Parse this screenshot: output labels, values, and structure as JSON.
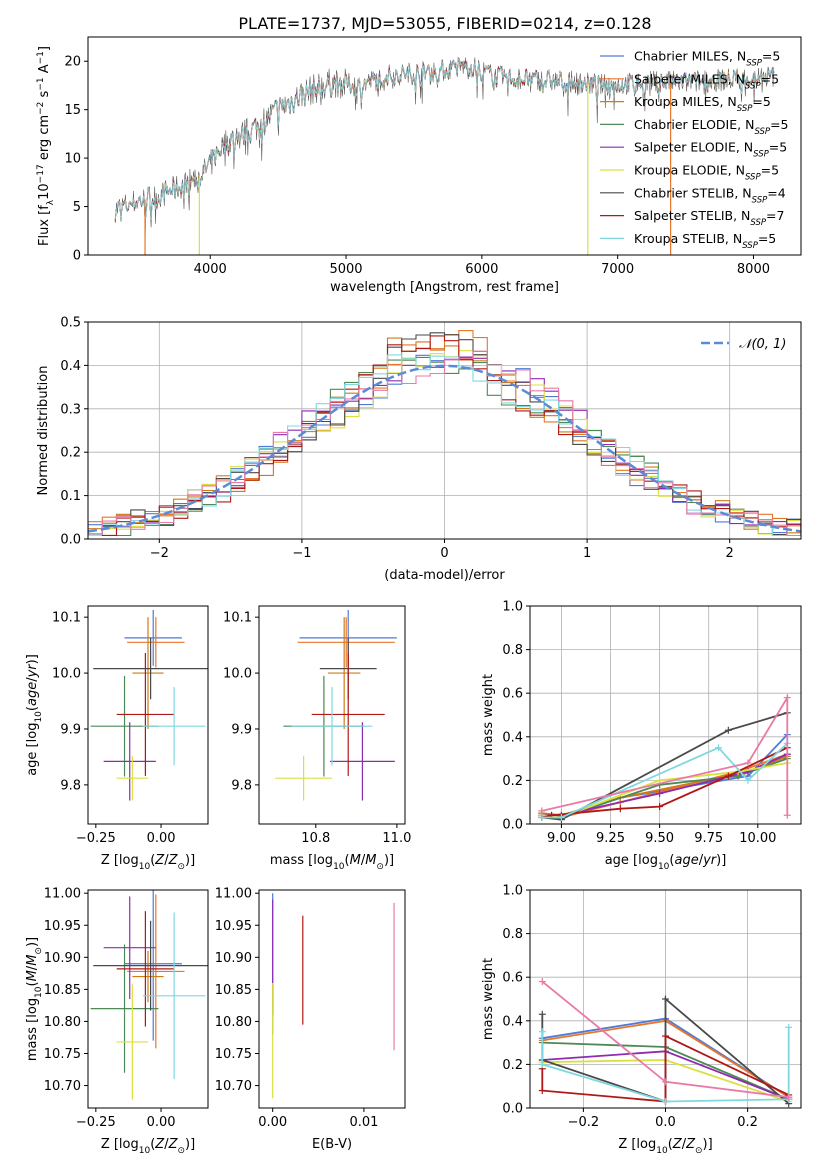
{
  "figure": {
    "title": "PLATE=1737, MJD=53055, FIBERID=0214, z=0.128"
  },
  "models": [
    {
      "name": "Chabrier MILES, N_SSP=5",
      "label_base": "Chabrier MILES, N",
      "label_sub": "SSP",
      "label_tail": "=5",
      "color": "#4f7ad8"
    },
    {
      "name": "Salpeter MILES, N_SSP=5",
      "label_base": "Salpeter MILES, N",
      "label_sub": "SSP",
      "label_tail": "=5",
      "color": "#e8762b"
    },
    {
      "name": "Kroupa MILES, N_SSP=5",
      "label_base": "Kroupa MILES, N",
      "label_sub": "SSP",
      "label_tail": "=5",
      "color": "#d07a1a"
    },
    {
      "name": "Chabrier ELODIE, N_SSP=5",
      "label_base": "Chabrier ELODIE, N",
      "label_sub": "SSP",
      "label_tail": "=5",
      "color": "#4e8a55"
    },
    {
      "name": "Salpeter ELODIE, N_SSP=5",
      "label_base": "Salpeter ELODIE, N",
      "label_sub": "SSP",
      "label_tail": "=5",
      "color": "#8e2bb0"
    },
    {
      "name": "Kroupa ELODIE, N_SSP=5",
      "label_base": "Kroupa ELODIE, N",
      "label_sub": "SSP",
      "label_tail": "=5",
      "color": "#d9e040"
    },
    {
      "name": "Chabrier STELIB, N_SSP=4",
      "label_base": "Chabrier STELIB, N",
      "label_sub": "SSP",
      "label_tail": "=4",
      "color": "#4a4a4a"
    },
    {
      "name": "Salpeter STELIB, N_SSP=7",
      "label_base": "Salpeter STELIB, N",
      "label_sub": "SSP",
      "label_tail": "=7",
      "color": "#b01818"
    },
    {
      "name": "Kroupa STELIB, N_SSP=5",
      "label_base": "Kroupa STELIB, N",
      "label_sub": "SSP",
      "label_tail": "=5",
      "color": "#7fd8e0"
    }
  ],
  "chart_data": [
    {
      "id": "spectrum",
      "type": "line",
      "xlabel": "wavelength [Angstrom, rest frame]",
      "ylabel": "Flux [f_λ 10^-17 erg cm^-2 s^-1 A^-1]",
      "xlim": [
        3100,
        8350
      ],
      "ylim": [
        0,
        22.5
      ],
      "xticks": [
        4000,
        5000,
        6000,
        7000,
        8000
      ],
      "yticks": [
        0,
        5,
        10,
        15,
        20
      ],
      "grid": false,
      "legend": "right",
      "trend": [
        [
          3300,
          4.7
        ],
        [
          3450,
          5.5
        ],
        [
          3600,
          6.0
        ],
        [
          3800,
          7.2
        ],
        [
          3950,
          8.5
        ],
        [
          4100,
          11.5
        ],
        [
          4300,
          12.8
        ],
        [
          4500,
          15.0
        ],
        [
          4700,
          16.8
        ],
        [
          4900,
          17.8
        ],
        [
          5100,
          17.5
        ],
        [
          5300,
          18.5
        ],
        [
          5500,
          18.8
        ],
        [
          5700,
          19.0
        ],
        [
          5900,
          19.6
        ],
        [
          6100,
          18.4
        ],
        [
          6300,
          18.2
        ],
        [
          6500,
          18.0
        ],
        [
          6700,
          17.8
        ],
        [
          6900,
          17.5
        ],
        [
          7100,
          17.7
        ],
        [
          7300,
          17.9
        ],
        [
          7500,
          17.8
        ],
        [
          7700,
          18.0
        ],
        [
          7900,
          18.2
        ],
        [
          8100,
          18.4
        ]
      ],
      "dropouts": [
        [
          3520,
          1
        ],
        [
          3920,
          5
        ],
        [
          6780,
          5
        ],
        [
          7390,
          1
        ]
      ]
    },
    {
      "id": "residuals",
      "type": "histogram",
      "xlabel": "(data-model)/error",
      "ylabel": "Normed distribution",
      "xlim": [
        -2.5,
        2.5
      ],
      "ylim": [
        0,
        0.5
      ],
      "xticks": [
        -2,
        -1,
        0,
        1,
        2
      ],
      "yticks": [
        0.0,
        0.1,
        0.2,
        0.3,
        0.4,
        0.5
      ],
      "grid": true,
      "legend_label": "𝒩(0, 1)",
      "gaussian_color": "#5b8ad8",
      "bin_width": 0.1
    },
    {
      "id": "age_vs_Z",
      "type": "errorbar",
      "xlabel": "Z [log10(Z/Z⊙)]",
      "ylabel": "age [log10(age/yr)]",
      "xlim": [
        -0.28,
        0.18
      ],
      "ylim": [
        9.73,
        10.12
      ],
      "xticks": [
        -0.25,
        0.0
      ],
      "yticks": [
        9.8,
        9.9,
        10.0,
        10.1
      ],
      "points": [
        {
          "model": 0,
          "x": -0.03,
          "xe": 0.11,
          "y": 10.063,
          "ye": 0.05
        },
        {
          "model": 1,
          "x": -0.02,
          "xe": 0.11,
          "y": 10.055,
          "ye": 0.045
        },
        {
          "model": 2,
          "x": -0.05,
          "xe": 0.06,
          "y": 10.0,
          "ye": 0.1
        },
        {
          "model": 3,
          "x": -0.14,
          "xe": 0.13,
          "y": 9.905,
          "ye": 0.09
        },
        {
          "model": 4,
          "x": -0.12,
          "xe": 0.1,
          "y": 9.842,
          "ye": 0.07
        },
        {
          "model": 5,
          "x": -0.11,
          "xe": 0.06,
          "y": 9.812,
          "ye": 0.04
        },
        {
          "model": 6,
          "x": -0.04,
          "xe": 0.22,
          "y": 10.008,
          "ye": 0.055
        },
        {
          "model": 7,
          "x": -0.06,
          "xe": 0.11,
          "y": 9.926,
          "ye": 0.11
        },
        {
          "model": 8,
          "x": 0.05,
          "xe": 0.12,
          "y": 9.905,
          "ye": 0.07
        }
      ]
    },
    {
      "id": "age_vs_mass",
      "type": "errorbar",
      "xlabel": "mass [log10(M/M⊙)]",
      "ylabel": "",
      "xlim": [
        10.66,
        11.02
      ],
      "ylim": [
        9.73,
        10.12
      ],
      "xticks": [
        10.8,
        11.0
      ],
      "yticks": [
        9.8,
        9.9,
        10.0,
        10.1
      ],
      "points": [
        {
          "model": 0,
          "x": 10.88,
          "xe": 0.12,
          "y": 10.063,
          "ye": 0.05
        },
        {
          "model": 1,
          "x": 10.875,
          "xe": 0.12,
          "y": 10.055,
          "ye": 0.045
        },
        {
          "model": 2,
          "x": 10.87,
          "xe": 0.04,
          "y": 10.0,
          "ye": 0.1
        },
        {
          "model": 3,
          "x": 10.82,
          "xe": 0.1,
          "y": 9.905,
          "ye": 0.09
        },
        {
          "model": 4,
          "x": 10.915,
          "xe": 0.08,
          "y": 9.842,
          "ye": 0.07
        },
        {
          "model": 5,
          "x": 10.77,
          "xe": 0.07,
          "y": 9.812,
          "ye": 0.04
        },
        {
          "model": 6,
          "x": 10.88,
          "xe": 0.07,
          "y": 10.008,
          "ye": 0.055
        },
        {
          "model": 7,
          "x": 10.88,
          "xe": 0.09,
          "y": 9.926,
          "ye": 0.11
        },
        {
          "model": 8,
          "x": 10.84,
          "xe": 0.1,
          "y": 9.905,
          "ye": 0.07
        }
      ]
    },
    {
      "id": "weight_vs_age",
      "type": "line",
      "xlabel": "age [log10(age/yr)]",
      "ylabel": "mass weight",
      "xlim": [
        8.84,
        10.22
      ],
      "ylim": [
        0,
        1.0
      ],
      "xticks": [
        9.0,
        9.25,
        9.5,
        9.75,
        10.0
      ],
      "yticks": [
        0.0,
        0.2,
        0.4,
        0.6,
        0.8,
        1.0
      ],
      "grid": true,
      "series": [
        {
          "model": 0,
          "x": [
            8.9,
            9.0,
            9.3,
            9.95,
            10.15
          ],
          "y": [
            0.05,
            0.03,
            0.12,
            0.22,
            0.41
          ]
        },
        {
          "model": 1,
          "x": [
            8.9,
            9.0,
            9.3,
            9.9,
            10.15
          ],
          "y": [
            0.04,
            0.03,
            0.1,
            0.24,
            0.32
          ]
        },
        {
          "model": 2,
          "x": [
            8.9,
            9.0,
            9.3,
            9.95,
            10.15
          ],
          "y": [
            0.05,
            0.04,
            0.12,
            0.24,
            0.31
          ]
        },
        {
          "model": 3,
          "x": [
            8.9,
            9.0,
            9.5,
            9.9,
            10.15
          ],
          "y": [
            0.04,
            0.03,
            0.18,
            0.22,
            0.3
          ]
        },
        {
          "model": 4,
          "x": [
            8.9,
            9.0,
            9.5,
            9.95,
            10.15
          ],
          "y": [
            0.04,
            0.04,
            0.14,
            0.24,
            0.32
          ]
        },
        {
          "model": 5,
          "x": [
            8.9,
            9.0,
            9.5,
            9.9,
            10.15
          ],
          "y": [
            0.04,
            0.03,
            0.2,
            0.24,
            0.28
          ]
        },
        {
          "model": 6,
          "x": [
            8.9,
            9.0,
            9.85,
            10.15
          ],
          "y": [
            0.03,
            0.02,
            0.43,
            0.51
          ]
        },
        {
          "model": 7,
          "x": [
            8.9,
            8.95,
            9.3,
            9.5,
            9.85,
            10.15
          ],
          "y": [
            0.03,
            0.04,
            0.07,
            0.08,
            0.22,
            0.35
          ]
        },
        {
          "model": 8,
          "x": [
            8.9,
            9.0,
            9.8,
            9.95,
            10.15
          ],
          "y": [
            0.03,
            0.03,
            0.35,
            0.2,
            0.37
          ]
        },
        {
          "model": "pink",
          "x": [
            8.9,
            9.95,
            10.15,
            10.15
          ],
          "y": [
            0.06,
            0.28,
            0.58,
            0.04
          ]
        }
      ]
    },
    {
      "id": "mass_vs_Z",
      "type": "errorbar",
      "xlabel": "Z [log10(Z/Z⊙)]",
      "ylabel": "mass [log10(M/M⊙)]",
      "xlim": [
        -0.28,
        0.18
      ],
      "ylim": [
        10.665,
        11.005
      ],
      "xticks": [
        -0.25,
        0.0
      ],
      "yticks": [
        10.7,
        10.75,
        10.8,
        10.85,
        10.9,
        10.95,
        11.0
      ],
      "points": [
        {
          "model": 0,
          "x": -0.03,
          "xe": 0.11,
          "y": 10.89,
          "ye": 0.12
        },
        {
          "model": 1,
          "x": -0.02,
          "xe": 0.11,
          "y": 10.878,
          "ye": 0.12
        },
        {
          "model": 2,
          "x": -0.05,
          "xe": 0.06,
          "y": 10.87,
          "ye": 0.04
        },
        {
          "model": 3,
          "x": -0.14,
          "xe": 0.13,
          "y": 10.82,
          "ye": 0.1
        },
        {
          "model": 4,
          "x": -0.12,
          "xe": 0.1,
          "y": 10.915,
          "ye": 0.08
        },
        {
          "model": 5,
          "x": -0.11,
          "xe": 0.06,
          "y": 10.768,
          "ye": 0.09
        },
        {
          "model": 6,
          "x": -0.04,
          "xe": 0.22,
          "y": 10.887,
          "ye": 0.07
        },
        {
          "model": 7,
          "x": -0.06,
          "xe": 0.11,
          "y": 10.882,
          "ye": 0.09
        },
        {
          "model": 8,
          "x": 0.05,
          "xe": 0.12,
          "y": 10.84,
          "ye": 0.13
        }
      ]
    },
    {
      "id": "mass_vs_ebv",
      "type": "errorbar",
      "xlabel": "E(B-V)",
      "ylabel": "",
      "xlim": [
        -0.0015,
        0.0145
      ],
      "ylim": [
        10.665,
        11.005
      ],
      "xticks": [
        0.0,
        0.01
      ],
      "yticks": [
        10.7,
        10.75,
        10.8,
        10.85,
        10.9,
        10.95,
        11.0
      ],
      "points": [
        {
          "model": 0,
          "x": 0.0,
          "xe": 0,
          "y": 10.89,
          "ye": 0.11
        },
        {
          "model": 4,
          "x": 0.0,
          "xe": 0,
          "y": 10.9,
          "ye": 0.09
        },
        {
          "model": 5,
          "x": 0.0,
          "xe": 0,
          "y": 10.77,
          "ye": 0.09
        },
        {
          "model": 7,
          "x": 0.0033,
          "xe": 0,
          "y": 10.88,
          "ye": 0.085
        },
        {
          "model": "pink",
          "x": 0.0133,
          "xe": 0,
          "y": 10.87,
          "ye": 0.115
        }
      ]
    },
    {
      "id": "weight_vs_Z",
      "type": "line",
      "xlabel": "Z [log10(Z/Z⊙)]",
      "ylabel": "mass weight",
      "xlim": [
        -0.33,
        0.33
      ],
      "ylim": [
        0,
        1.0
      ],
      "xticks": [
        -0.2,
        0.0,
        0.2
      ],
      "yticks": [
        0.0,
        0.2,
        0.4,
        0.6,
        0.8,
        1.0
      ],
      "grid": true,
      "series": [
        {
          "model": 0,
          "x": [
            -0.3,
            0.0,
            0.3
          ],
          "y": [
            0.32,
            0.41,
            0.05
          ]
        },
        {
          "model": 1,
          "x": [
            -0.3,
            0.0,
            0.3
          ],
          "y": [
            0.31,
            0.4,
            0.05
          ]
        },
        {
          "model": 3,
          "x": [
            -0.3,
            0.0,
            0.3
          ],
          "y": [
            0.3,
            0.28,
            0.04
          ]
        },
        {
          "model": 4,
          "x": [
            -0.3,
            0.0,
            0.3
          ],
          "y": [
            0.22,
            0.26,
            0.04
          ]
        },
        {
          "model": 5,
          "x": [
            -0.3,
            0.0,
            0.3
          ],
          "y": [
            0.21,
            0.22,
            0.03
          ]
        },
        {
          "model": 6,
          "x": [
            -0.3,
            -0.3,
            0.0,
            0.0,
            0.3
          ],
          "y": [
            0.43,
            0.22,
            0.03,
            0.5,
            0.02
          ]
        },
        {
          "model": 7,
          "x": [
            -0.3,
            -0.3,
            0.0,
            0.0,
            0.3
          ],
          "y": [
            0.18,
            0.08,
            0.03,
            0.33,
            0.06
          ]
        },
        {
          "model": 8,
          "x": [
            -0.3,
            -0.3,
            0.0,
            0.3,
            0.3
          ],
          "y": [
            0.35,
            0.2,
            0.03,
            0.04,
            0.37
          ]
        },
        {
          "model": "pink",
          "x": [
            -0.3,
            0.0,
            0.3
          ],
          "y": [
            0.58,
            0.12,
            0.05
          ]
        }
      ]
    }
  ]
}
